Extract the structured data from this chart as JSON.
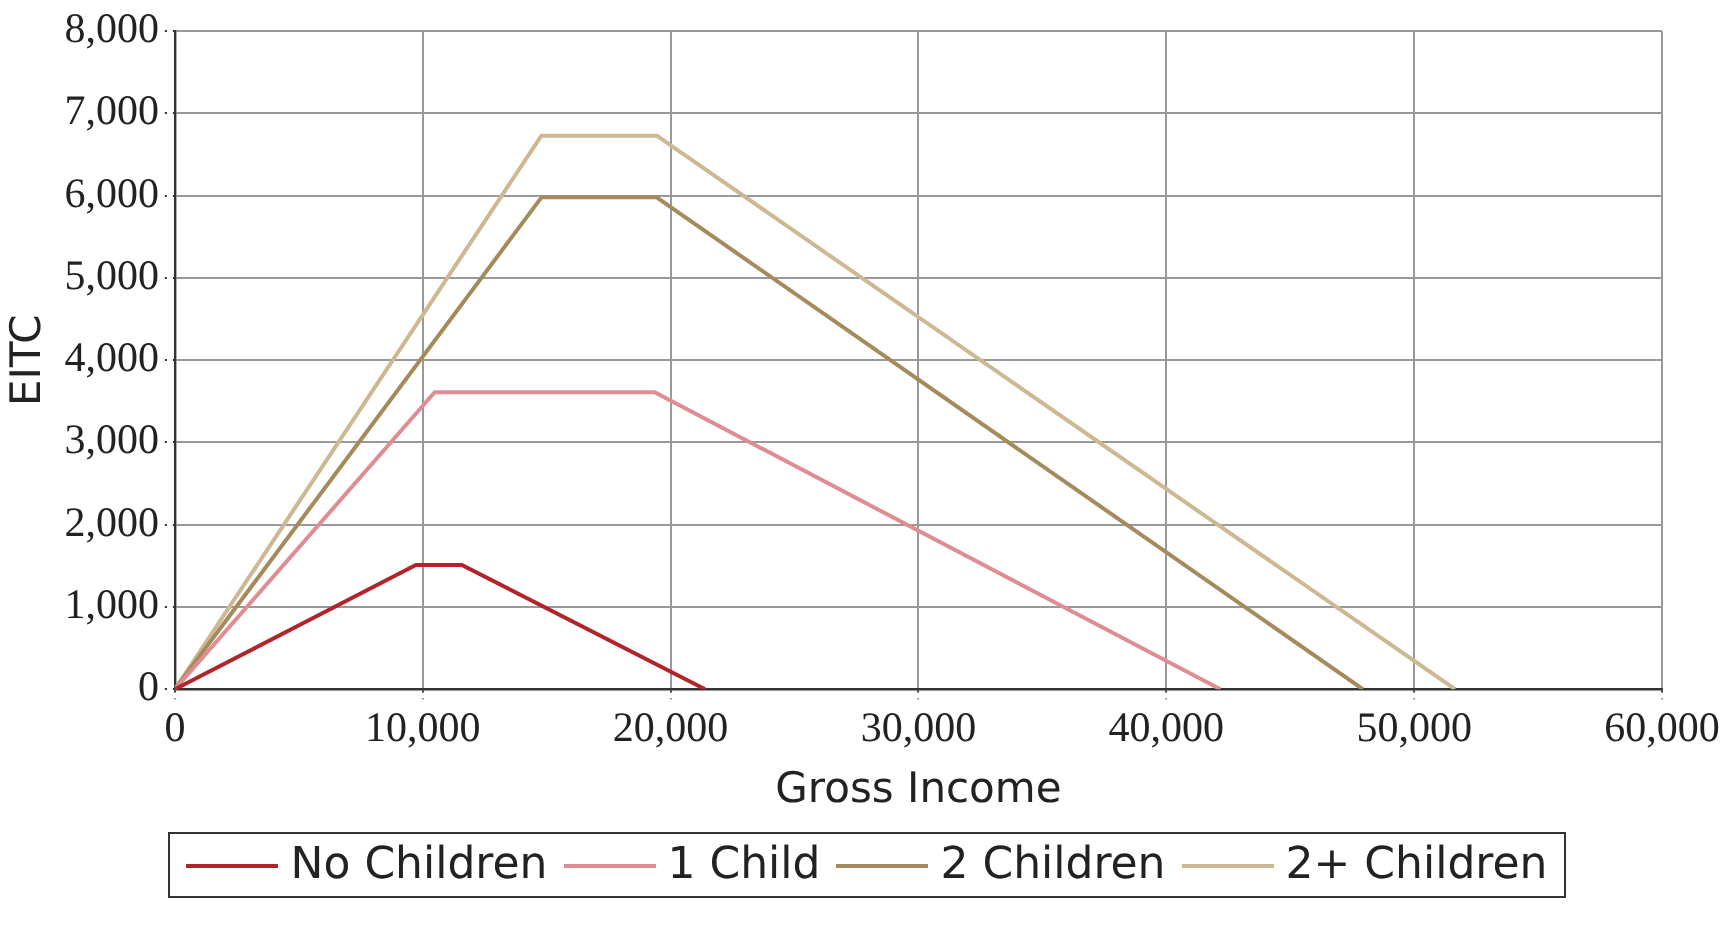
{
  "chart_data": {
    "type": "line",
    "xlabel": "Gross Income",
    "ylabel": "EITC",
    "xlim": [
      0,
      60000
    ],
    "xticks": [
      {
        "value": 0,
        "label": "0"
      },
      {
        "value": 10000,
        "label": "10,000"
      },
      {
        "value": 20000,
        "label": "20,000"
      },
      {
        "value": 30000,
        "label": "30,000"
      },
      {
        "value": 40000,
        "label": "40,000"
      },
      {
        "value": 50000,
        "label": "50,000"
      },
      {
        "value": 60000,
        "label": "60,000"
      }
    ],
    "ylim": [
      0,
      8000
    ],
    "yticks": [
      {
        "value": 0,
        "label": "0"
      },
      {
        "value": 1000,
        "label": "1,000"
      },
      {
        "value": 2000,
        "label": "2,000"
      },
      {
        "value": 3000,
        "label": "3,000"
      },
      {
        "value": 4000,
        "label": "4,000"
      },
      {
        "value": 5000,
        "label": "5,000"
      },
      {
        "value": 6000,
        "label": "6,000"
      },
      {
        "value": 7000,
        "label": "7,000"
      },
      {
        "value": 8000,
        "label": "8,000"
      }
    ],
    "grid": true,
    "legend": "bottom",
    "marker": "none",
    "line_style": "solid",
    "series": [
      {
        "name": "No Children",
        "color": "#b2242b",
        "x": [
          0,
          9720,
          11580,
          21390
        ],
        "values": [
          0,
          1510,
          1510,
          0
        ]
      },
      {
        "name": "1 Child",
        "color": "#df8c93",
        "x": [
          0,
          10480,
          19360,
          42180
        ],
        "values": [
          0,
          3610,
          3610,
          0
        ]
      },
      {
        "name": "2 Children",
        "color": "#a58a5c",
        "x": [
          0,
          14790,
          19440,
          47930
        ],
        "values": [
          0,
          5980,
          5980,
          0
        ]
      },
      {
        "name": "2+ Children",
        "color": "#cdb893",
        "x": [
          0,
          14790,
          19440,
          51650
        ],
        "values": [
          0,
          6730,
          6730,
          0
        ]
      }
    ]
  }
}
